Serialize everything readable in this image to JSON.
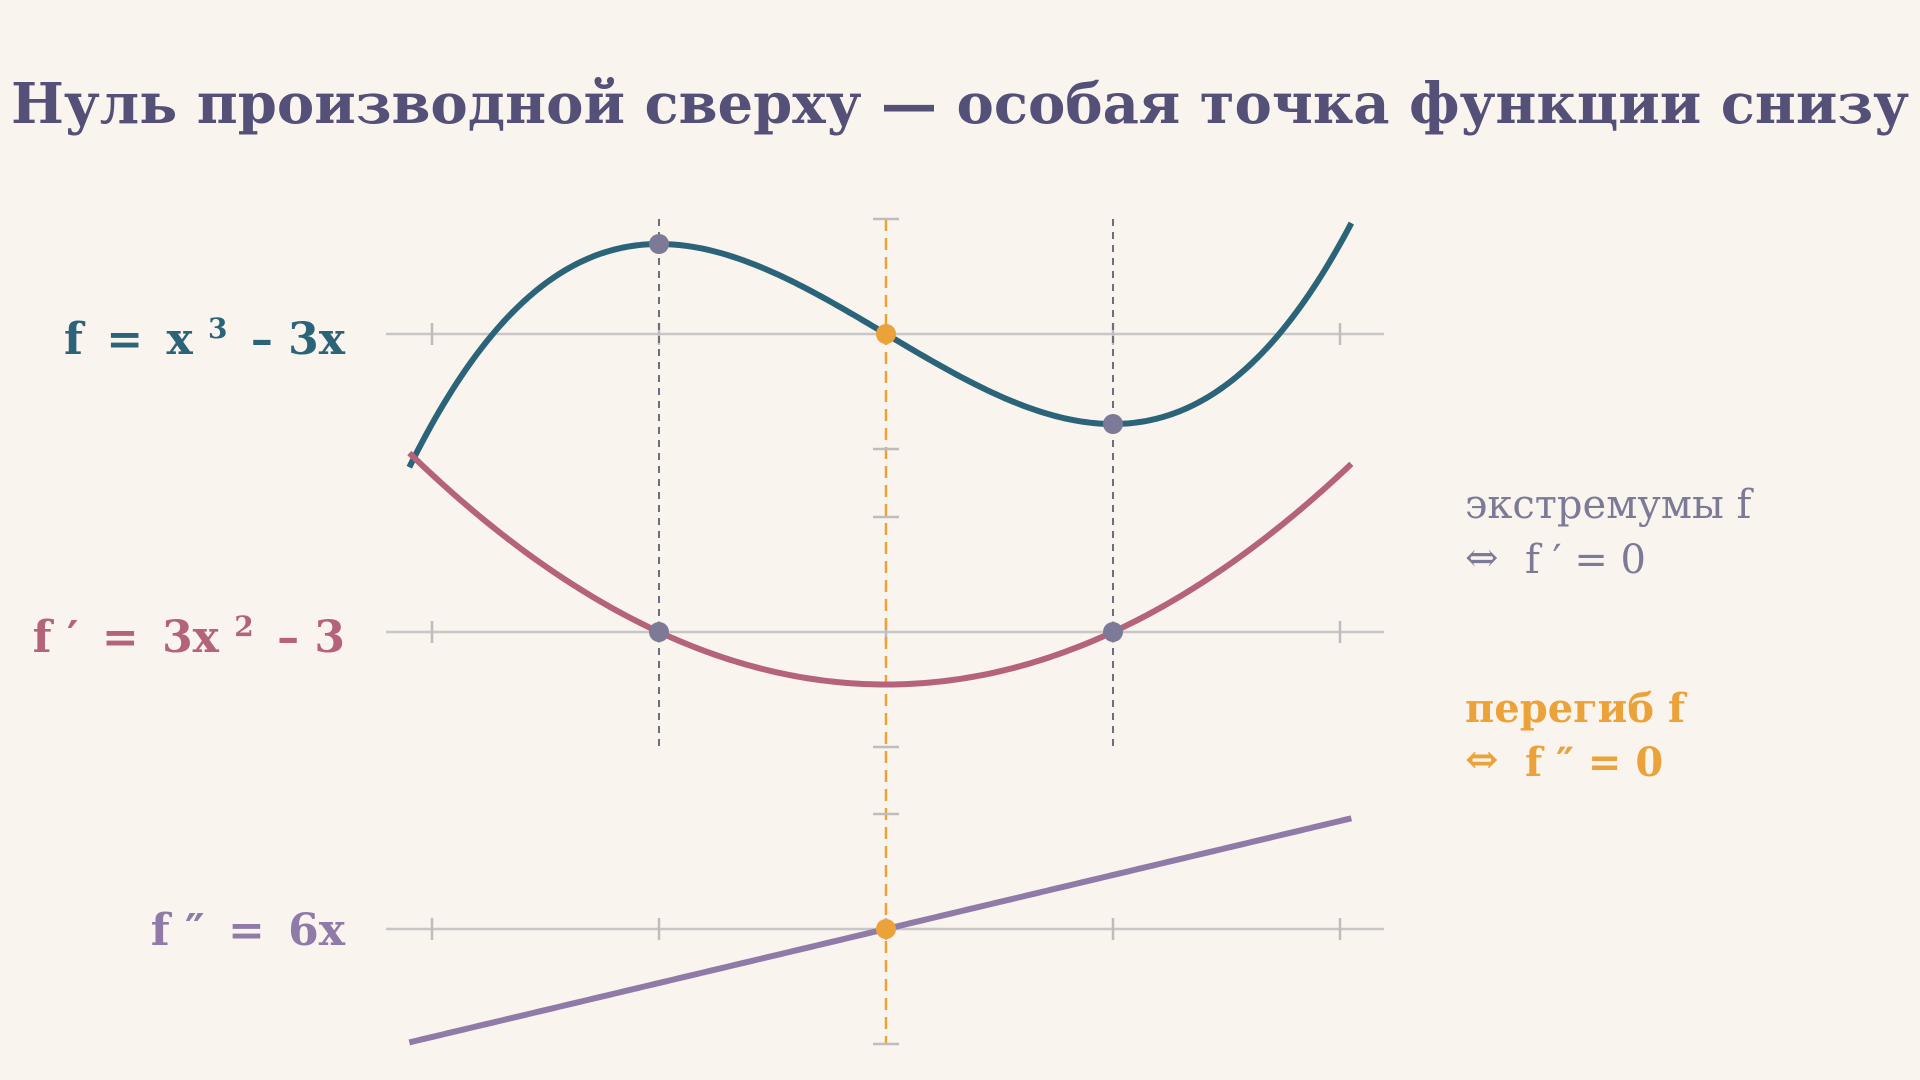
{
  "title": "Нуль производной сверху — особая точка функции снизу",
  "colors": {
    "background": "#faf4ee",
    "title": "#545077",
    "f": "#2b6479",
    "f1": "#b4637a",
    "f2": "#8f7aa8",
    "extremum": "#7c7a96",
    "inflection": "#eba239",
    "axis": "#c9c6c8",
    "tick": "#bfbcbf",
    "extremum_guide": "#6f6d80"
  },
  "labels": {
    "f": {
      "name": "f",
      "eq": "=",
      "body": "x",
      "power": "3",
      "rest": "– 3x"
    },
    "f1": {
      "name": "f ′",
      "eq": "=",
      "body": "3x",
      "power": "2",
      "rest": "– 3"
    },
    "f2": {
      "name": "f ″",
      "eq": "=",
      "body": "6x",
      "power": "",
      "rest": ""
    }
  },
  "legend": {
    "extremum": {
      "line1": "экстремумы f",
      "arrow": "⇔",
      "line2": "f ′ = 0"
    },
    "inflection": {
      "line1": "перегиб f",
      "arrow": "⇔",
      "line2": "f ″ = 0"
    }
  },
  "chart_data": {
    "type": "line",
    "x_range": [
      -2.1,
      2.05
    ],
    "x_ticks": [
      -2,
      -1,
      0,
      1,
      2
    ],
    "panels": [
      {
        "name": "f",
        "expression": "x^3 - 3x",
        "coefficients": [
          0,
          -3,
          0,
          1
        ],
        "ylim": [
          -2.4,
          2.4
        ],
        "marked_points": [
          {
            "x": -1,
            "y": 2,
            "kind": "extremum"
          },
          {
            "x": 0,
            "y": 0,
            "kind": "inflection"
          },
          {
            "x": 1,
            "y": -2,
            "kind": "extremum"
          }
        ]
      },
      {
        "name": "f1",
        "expression": "3x^2 - 3",
        "coefficients": [
          -3,
          0,
          3
        ],
        "ylim": [
          -6,
          6
        ],
        "marked_points": [
          {
            "x": -1,
            "y": 0,
            "kind": "extremum"
          },
          {
            "x": 1,
            "y": 0,
            "kind": "extremum"
          }
        ]
      },
      {
        "name": "f2",
        "expression": "6x",
        "coefficients": [
          0,
          6
        ],
        "ylim": [
          -12,
          12
        ],
        "marked_points": [
          {
            "x": 0,
            "y": 0,
            "kind": "inflection"
          }
        ]
      }
    ],
    "extremum_x": [
      -1,
      1
    ],
    "inflection_x": 0
  }
}
